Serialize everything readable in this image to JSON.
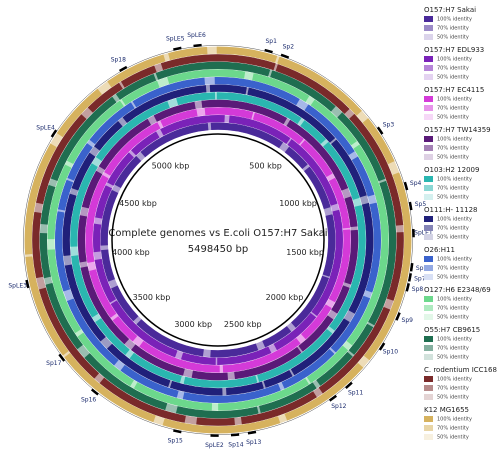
{
  "title": "Complete genomes vs E.coli O157:H7 Sakai",
  "subtitle": "5498450 bp",
  "scale_labels": [
    "500 kbp",
    "1000 kbp",
    "1500 kbp",
    "2000 kbp",
    "2500 kbp",
    "3000 kbp",
    "3500 kbp",
    "4000 kbp",
    "4500 kbp",
    "5000 kbp"
  ],
  "regions": [
    "Sp1",
    "Sp2",
    "Sp3",
    "Sp4",
    "Sp5",
    "SpLE1",
    "Sp6",
    "Sp7",
    "Sp8",
    "Sp9",
    "Sp10",
    "Sp11",
    "Sp12",
    "Sp13",
    "Sp14",
    "SpLE2",
    "Sp15",
    "Sp16",
    "Sp17",
    "SpLE3",
    "SpLE4",
    "Sp18",
    "SpLE5",
    "SpLE6"
  ],
  "legend": [
    {
      "name": "O157:H7 Sakai",
      "color": "#4a2a9a",
      "levels": [
        "100% identity",
        "70% identity",
        "50% identity"
      ]
    },
    {
      "name": "O157:H7 EDL933",
      "color": "#7a22b8",
      "levels": [
        "100% identity",
        "70% identity",
        "50% identity"
      ]
    },
    {
      "name": "O157:H7 EC4115",
      "color": "#d43ad8",
      "levels": [
        "100% identity",
        "70% identity",
        "50% identity"
      ]
    },
    {
      "name": "O157:H7 TW14359",
      "color": "#5a1a78",
      "levels": [
        "100% identity",
        "70% identity",
        "50% identity"
      ]
    },
    {
      "name": "O103:H2 12009",
      "color": "#2ab6b0",
      "levels": [
        "100% identity",
        "70% identity",
        "50% identity"
      ]
    },
    {
      "name": "O111:H- 11128",
      "color": "#20207a",
      "levels": [
        "100% identity",
        "70% identity",
        "50% identity"
      ]
    },
    {
      "name": "O26:H11",
      "color": "#3a62cc",
      "levels": [
        "100% identity",
        "70% identity",
        "50% identity"
      ]
    },
    {
      "name": "O127:H6 E2348/69",
      "color": "#6cd88c",
      "levels": [
        "100% identity",
        "70% identity",
        "50% identity"
      ]
    },
    {
      "name": "O55:H7 CB9615",
      "color": "#1f6e50",
      "levels": [
        "100% identity",
        "70% identity",
        "50% identity"
      ]
    },
    {
      "name": "C. rodentium ICC168",
      "color": "#7a2a2a",
      "levels": [
        "100% identity",
        "70% identity",
        "50% identity"
      ]
    },
    {
      "name": "K12 MG1655",
      "color": "#d6b25e",
      "levels": [
        "100% identity",
        "70% identity",
        "50% identity"
      ]
    }
  ]
}
